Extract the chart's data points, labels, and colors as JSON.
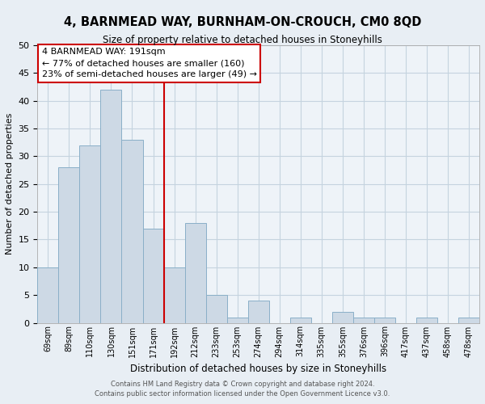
{
  "title": "4, BARNMEAD WAY, BURNHAM-ON-CROUCH, CM0 8QD",
  "subtitle": "Size of property relative to detached houses in Stoneyhills",
  "xlabel": "Distribution of detached houses by size in Stoneyhills",
  "ylabel": "Number of detached properties",
  "bar_color": "#cdd9e5",
  "bar_edge_color": "#8aafc8",
  "bin_labels": [
    "69sqm",
    "89sqm",
    "110sqm",
    "130sqm",
    "151sqm",
    "171sqm",
    "192sqm",
    "212sqm",
    "233sqm",
    "253sqm",
    "274sqm",
    "294sqm",
    "314sqm",
    "335sqm",
    "355sqm",
    "376sqm",
    "396sqm",
    "417sqm",
    "437sqm",
    "458sqm",
    "478sqm"
  ],
  "bar_heights": [
    10,
    28,
    32,
    42,
    33,
    17,
    10,
    18,
    5,
    1,
    4,
    0,
    1,
    0,
    2,
    1,
    1,
    0,
    1,
    0,
    1
  ],
  "ylim": [
    0,
    50
  ],
  "yticks": [
    0,
    5,
    10,
    15,
    20,
    25,
    30,
    35,
    40,
    45,
    50
  ],
  "vline_x_index": 6,
  "vline_color": "#cc0000",
  "annotation_title": "4 BARNMEAD WAY: 191sqm",
  "annotation_line1": "← 77% of detached houses are smaller (160)",
  "annotation_line2": "23% of semi-detached houses are larger (49) →",
  "annotation_box_color": "#ffffff",
  "annotation_box_edge": "#cc0000",
  "footer_line1": "Contains HM Land Registry data © Crown copyright and database right 2024.",
  "footer_line2": "Contains public sector information licensed under the Open Government Licence v3.0.",
  "background_color": "#e8eef4",
  "plot_bg_color": "#eef3f8",
  "grid_color": "#c5d3df"
}
